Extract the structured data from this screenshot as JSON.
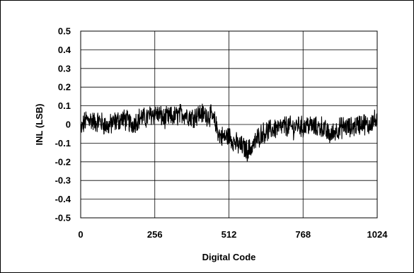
{
  "chart_data": {
    "type": "line",
    "title": "",
    "xlabel": "Digital Code",
    "ylabel": "INL (LSB)",
    "xlim": [
      0,
      1024
    ],
    "ylim": [
      -0.5,
      0.5
    ],
    "x_ticks": [
      0,
      256,
      512,
      768,
      1024
    ],
    "x_tick_labels": [
      "0",
      "256",
      "512",
      "768",
      "1024"
    ],
    "y_ticks": [
      0.5,
      0.4,
      0.3,
      0.2,
      0.1,
      0,
      -0.1,
      -0.2,
      -0.3,
      -0.4,
      -0.5
    ],
    "y_tick_labels": [
      "0.5",
      "0.4",
      "0.3",
      "0.2",
      "0.1",
      "0",
      "-0.1",
      "-0.2",
      "-0.3",
      "-0.4",
      "-0.5"
    ],
    "grid": true,
    "legend": "none",
    "series": [
      {
        "color": "#000000",
        "x": [
          0,
          16,
          32,
          48,
          64,
          80,
          96,
          112,
          128,
          144,
          160,
          176,
          192,
          208,
          224,
          240,
          256,
          272,
          288,
          304,
          320,
          336,
          352,
          368,
          384,
          400,
          416,
          432,
          448,
          464,
          480,
          496,
          512,
          528,
          544,
          560,
          576,
          592,
          608,
          624,
          640,
          656,
          672,
          688,
          704,
          720,
          736,
          752,
          768,
          784,
          800,
          816,
          832,
          848,
          864,
          880,
          896,
          912,
          928,
          944,
          960,
          976,
          992,
          1008,
          1023
        ],
        "y": [
          -0.03,
          0.02,
          0.03,
          0.01,
          0.02,
          0.0,
          -0.01,
          0.01,
          0.02,
          0.03,
          0.02,
          0.0,
          0.02,
          0.04,
          0.03,
          0.05,
          0.06,
          0.05,
          0.03,
          0.04,
          0.04,
          0.05,
          0.06,
          0.05,
          0.04,
          0.05,
          0.06,
          0.05,
          0.05,
          0.01,
          -0.06,
          -0.07,
          -0.06,
          -0.09,
          -0.11,
          -0.12,
          -0.14,
          -0.12,
          -0.08,
          -0.05,
          -0.04,
          -0.03,
          -0.02,
          -0.02,
          -0.01,
          -0.01,
          -0.02,
          0.0,
          -0.02,
          0.0,
          -0.01,
          -0.02,
          -0.01,
          -0.04,
          -0.06,
          -0.03,
          -0.02,
          -0.01,
          -0.02,
          -0.01,
          0.0,
          0.01,
          -0.01,
          0.02,
          0.02
        ]
      }
    ]
  }
}
